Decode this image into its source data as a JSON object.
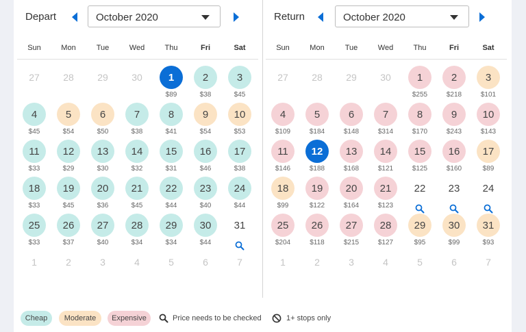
{
  "colors": {
    "cheap": "#c5ebe8",
    "moderate": "#fbe3c4",
    "expensive": "#f5d2d6",
    "selected": "#0b6ed6",
    "accent": "#0b6ed6"
  },
  "icons": {
    "prev": "caret-left-icon",
    "next": "caret-right-icon",
    "dropdown": "caret-down-icon",
    "search": "search-icon",
    "stops": "no-entry-icon"
  },
  "weekdays": [
    "Sun",
    "Mon",
    "Tue",
    "Wed",
    "Thu",
    "Fri",
    "Sat"
  ],
  "depart": {
    "label": "Depart",
    "month": "October 2020",
    "days": [
      {
        "day": "27",
        "status": "muted"
      },
      {
        "day": "28",
        "status": "muted"
      },
      {
        "day": "29",
        "status": "muted"
      },
      {
        "day": "30",
        "status": "muted"
      },
      {
        "day": "1",
        "status": "selected",
        "price": "$89"
      },
      {
        "day": "2",
        "status": "cheap",
        "price": "$38"
      },
      {
        "day": "3",
        "status": "cheap",
        "price": "$45"
      },
      {
        "day": "4",
        "status": "cheap",
        "price": "$45"
      },
      {
        "day": "5",
        "status": "moderate",
        "price": "$54"
      },
      {
        "day": "6",
        "status": "moderate",
        "price": "$50"
      },
      {
        "day": "7",
        "status": "cheap",
        "price": "$38"
      },
      {
        "day": "8",
        "status": "cheap",
        "price": "$41"
      },
      {
        "day": "9",
        "status": "moderate",
        "price": "$54"
      },
      {
        "day": "10",
        "status": "moderate",
        "price": "$53"
      },
      {
        "day": "11",
        "status": "cheap",
        "price": "$33"
      },
      {
        "day": "12",
        "status": "cheap",
        "price": "$29"
      },
      {
        "day": "13",
        "status": "cheap",
        "price": "$30"
      },
      {
        "day": "14",
        "status": "cheap",
        "price": "$32"
      },
      {
        "day": "15",
        "status": "cheap",
        "price": "$31"
      },
      {
        "day": "16",
        "status": "cheap",
        "price": "$46"
      },
      {
        "day": "17",
        "status": "cheap",
        "price": "$38"
      },
      {
        "day": "18",
        "status": "cheap",
        "price": "$33"
      },
      {
        "day": "19",
        "status": "cheap",
        "price": "$45"
      },
      {
        "day": "20",
        "status": "cheap",
        "price": "$36"
      },
      {
        "day": "21",
        "status": "cheap",
        "price": "$45"
      },
      {
        "day": "22",
        "status": "cheap",
        "price": "$44"
      },
      {
        "day": "23",
        "status": "cheap",
        "price": "$40"
      },
      {
        "day": "24",
        "status": "cheap",
        "price": "$44"
      },
      {
        "day": "25",
        "status": "cheap",
        "price": "$33"
      },
      {
        "day": "26",
        "status": "cheap",
        "price": "$37"
      },
      {
        "day": "27",
        "status": "cheap",
        "price": "$40"
      },
      {
        "day": "28",
        "status": "cheap",
        "price": "$34"
      },
      {
        "day": "29",
        "status": "cheap",
        "price": "$34"
      },
      {
        "day": "30",
        "status": "cheap",
        "price": "$44"
      },
      {
        "day": "31",
        "status": "check"
      },
      {
        "day": "1",
        "status": "muted"
      },
      {
        "day": "2",
        "status": "muted"
      },
      {
        "day": "3",
        "status": "muted"
      },
      {
        "day": "4",
        "status": "muted"
      },
      {
        "day": "5",
        "status": "muted"
      },
      {
        "day": "6",
        "status": "muted"
      },
      {
        "day": "7",
        "status": "muted"
      }
    ]
  },
  "return": {
    "label": "Return",
    "month": "October 2020",
    "days": [
      {
        "day": "27",
        "status": "muted"
      },
      {
        "day": "28",
        "status": "muted"
      },
      {
        "day": "29",
        "status": "muted"
      },
      {
        "day": "30",
        "status": "muted"
      },
      {
        "day": "1",
        "status": "expensive",
        "price": "$255"
      },
      {
        "day": "2",
        "status": "expensive",
        "price": "$218"
      },
      {
        "day": "3",
        "status": "moderate",
        "price": "$101"
      },
      {
        "day": "4",
        "status": "expensive",
        "price": "$109"
      },
      {
        "day": "5",
        "status": "expensive",
        "price": "$184"
      },
      {
        "day": "6",
        "status": "expensive",
        "price": "$148"
      },
      {
        "day": "7",
        "status": "expensive",
        "price": "$314"
      },
      {
        "day": "8",
        "status": "expensive",
        "price": "$170"
      },
      {
        "day": "9",
        "status": "expensive",
        "price": "$243"
      },
      {
        "day": "10",
        "status": "expensive",
        "price": "$143"
      },
      {
        "day": "11",
        "status": "expensive",
        "price": "$146"
      },
      {
        "day": "12",
        "status": "selected",
        "price": "$188"
      },
      {
        "day": "13",
        "status": "expensive",
        "price": "$168"
      },
      {
        "day": "14",
        "status": "expensive",
        "price": "$121"
      },
      {
        "day": "15",
        "status": "expensive",
        "price": "$125"
      },
      {
        "day": "16",
        "status": "expensive",
        "price": "$160"
      },
      {
        "day": "17",
        "status": "moderate",
        "price": "$89"
      },
      {
        "day": "18",
        "status": "moderate",
        "price": "$99"
      },
      {
        "day": "19",
        "status": "expensive",
        "price": "$122"
      },
      {
        "day": "20",
        "status": "expensive",
        "price": "$164"
      },
      {
        "day": "21",
        "status": "expensive",
        "price": "$123"
      },
      {
        "day": "22",
        "status": "check"
      },
      {
        "day": "23",
        "status": "check"
      },
      {
        "day": "24",
        "status": "check"
      },
      {
        "day": "25",
        "status": "expensive",
        "price": "$204"
      },
      {
        "day": "26",
        "status": "expensive",
        "price": "$118"
      },
      {
        "day": "27",
        "status": "expensive",
        "price": "$215"
      },
      {
        "day": "28",
        "status": "expensive",
        "price": "$127"
      },
      {
        "day": "29",
        "status": "moderate",
        "price": "$95"
      },
      {
        "day": "30",
        "status": "moderate",
        "price": "$99"
      },
      {
        "day": "31",
        "status": "moderate",
        "price": "$93"
      },
      {
        "day": "1",
        "status": "muted"
      },
      {
        "day": "2",
        "status": "muted"
      },
      {
        "day": "3",
        "status": "muted"
      },
      {
        "day": "4",
        "status": "muted"
      },
      {
        "day": "5",
        "status": "muted"
      },
      {
        "day": "6",
        "status": "muted"
      },
      {
        "day": "7",
        "status": "muted"
      }
    ]
  },
  "legend": {
    "cheap": "Cheap",
    "moderate": "Moderate",
    "expensive": "Expensive",
    "check": "Price needs to be checked",
    "stops": "1+ stops only"
  }
}
